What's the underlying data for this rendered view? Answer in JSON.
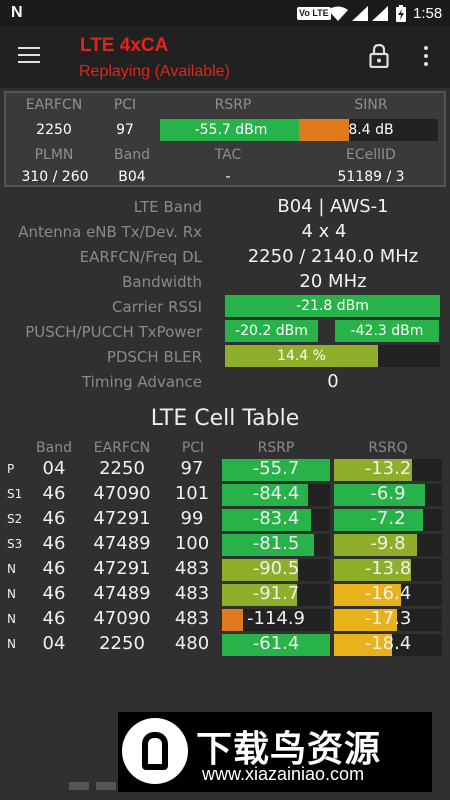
{
  "status_bar": {
    "time": "1:58",
    "volte": "Vo LTE"
  },
  "app_bar": {
    "title": "LTE 4xCA",
    "subtitle": "Replaying (Available)"
  },
  "summary": {
    "headers1": [
      "EARFCN",
      "PCI",
      "RSRP",
      "SINR"
    ],
    "values1": {
      "earfcn": "2250",
      "pci": "97",
      "rsrp": "-55.7 dBm",
      "sinr": "8.4 dB"
    },
    "headers2": [
      "PLMN",
      "Band",
      "TAC",
      "ECellID"
    ],
    "values2": {
      "plmn": "310 / 260",
      "band": "B04",
      "tac": "-",
      "ecellid": "51189 / 3"
    },
    "rsrp_fill": 0.51,
    "sinr_fill": 0.18
  },
  "details": {
    "labels": [
      "LTE Band",
      "Antenna eNB Tx/Dev. Rx",
      "EARFCN/Freq DL",
      "Bandwidth",
      "Carrier RSSI",
      "PUSCH/PUCCH TxPower",
      "PDSCH BLER",
      "Timing Advance"
    ],
    "lte_band": "B04 | AWS-1",
    "antenna": "4 x 4",
    "earfcn_freq": "2250 / 2140.0 MHz",
    "bandwidth": "20 MHz",
    "carrier_rssi": "-21.8 dBm",
    "pusch": "-20.2 dBm",
    "pucch": "-42.3 dBm",
    "pdsch_bler": "14.4 %",
    "bler_fill": 0.71,
    "timing_advance": "0"
  },
  "table": {
    "title": "LTE Cell Table",
    "headers": [
      "Band",
      "EARFCN",
      "PCI",
      "RSRP",
      "RSRQ"
    ],
    "rows": [
      {
        "type": "P",
        "band": "04",
        "earfcn": "2250",
        "pci": "97",
        "rsrp": "-55.7",
        "rsrq": "-13.2",
        "rsrp_fill": 1.0,
        "rsrq_fill": 0.72,
        "rsrp_color": "#27b34a",
        "rsrq_color": "#8fae2a"
      },
      {
        "type": "S1",
        "band": "46",
        "earfcn": "47090",
        "pci": "101",
        "rsrp": "-84.4",
        "rsrq": "-6.9",
        "rsrp_fill": 0.8,
        "rsrq_fill": 0.84,
        "rsrp_color": "#27b34a",
        "rsrq_color": "#27b34a"
      },
      {
        "type": "S2",
        "band": "46",
        "earfcn": "47291",
        "pci": "99",
        "rsrp": "-83.4",
        "rsrq": "-7.2",
        "rsrp_fill": 0.82,
        "rsrq_fill": 0.82,
        "rsrp_color": "#27b34a",
        "rsrq_color": "#27b34a"
      },
      {
        "type": "S3",
        "band": "46",
        "earfcn": "47489",
        "pci": "100",
        "rsrp": "-81.5",
        "rsrq": "-9.8",
        "rsrp_fill": 0.85,
        "rsrq_fill": 0.77,
        "rsrp_color": "#27b34a",
        "rsrq_color": "#8fae2a"
      },
      {
        "type": "N",
        "band": "46",
        "earfcn": "47291",
        "pci": "483",
        "rsrp": "-90.5",
        "rsrq": "-13.8",
        "rsrp_fill": 0.7,
        "rsrq_fill": 0.71,
        "rsrp_color": "#8fae2a",
        "rsrq_color": "#8fae2a"
      },
      {
        "type": "N",
        "band": "46",
        "earfcn": "47489",
        "pci": "483",
        "rsrp": "-91.7",
        "rsrq": "-16.4",
        "rsrp_fill": 0.69,
        "rsrq_fill": 0.62,
        "rsrp_color": "#8fae2a",
        "rsrq_color": "#e8b21c"
      },
      {
        "type": "N",
        "band": "46",
        "earfcn": "47090",
        "pci": "483",
        "rsrp": "-114.9",
        "rsrq": "-17.3",
        "rsrp_fill": 0.19,
        "rsrq_fill": 0.58,
        "rsrp_color": "#e07a1f",
        "rsrq_color": "#e8b21c"
      },
      {
        "type": "N",
        "band": "04",
        "earfcn": "2250",
        "pci": "480",
        "rsrp": "-61.4",
        "rsrq": "-18.4",
        "rsrp_fill": 1.0,
        "rsrq_fill": 0.54,
        "rsrp_color": "#27b34a",
        "rsrq_color": "#e8b21c"
      }
    ]
  },
  "watermark": {
    "title": "下载鸟资源",
    "url": "www.xiazainiao.com"
  },
  "colors": {
    "accent_red": "#e0251b",
    "green": "#27b34a",
    "lime": "#8fae2a",
    "yellow": "#e8b21c",
    "orange": "#e07a1f"
  }
}
